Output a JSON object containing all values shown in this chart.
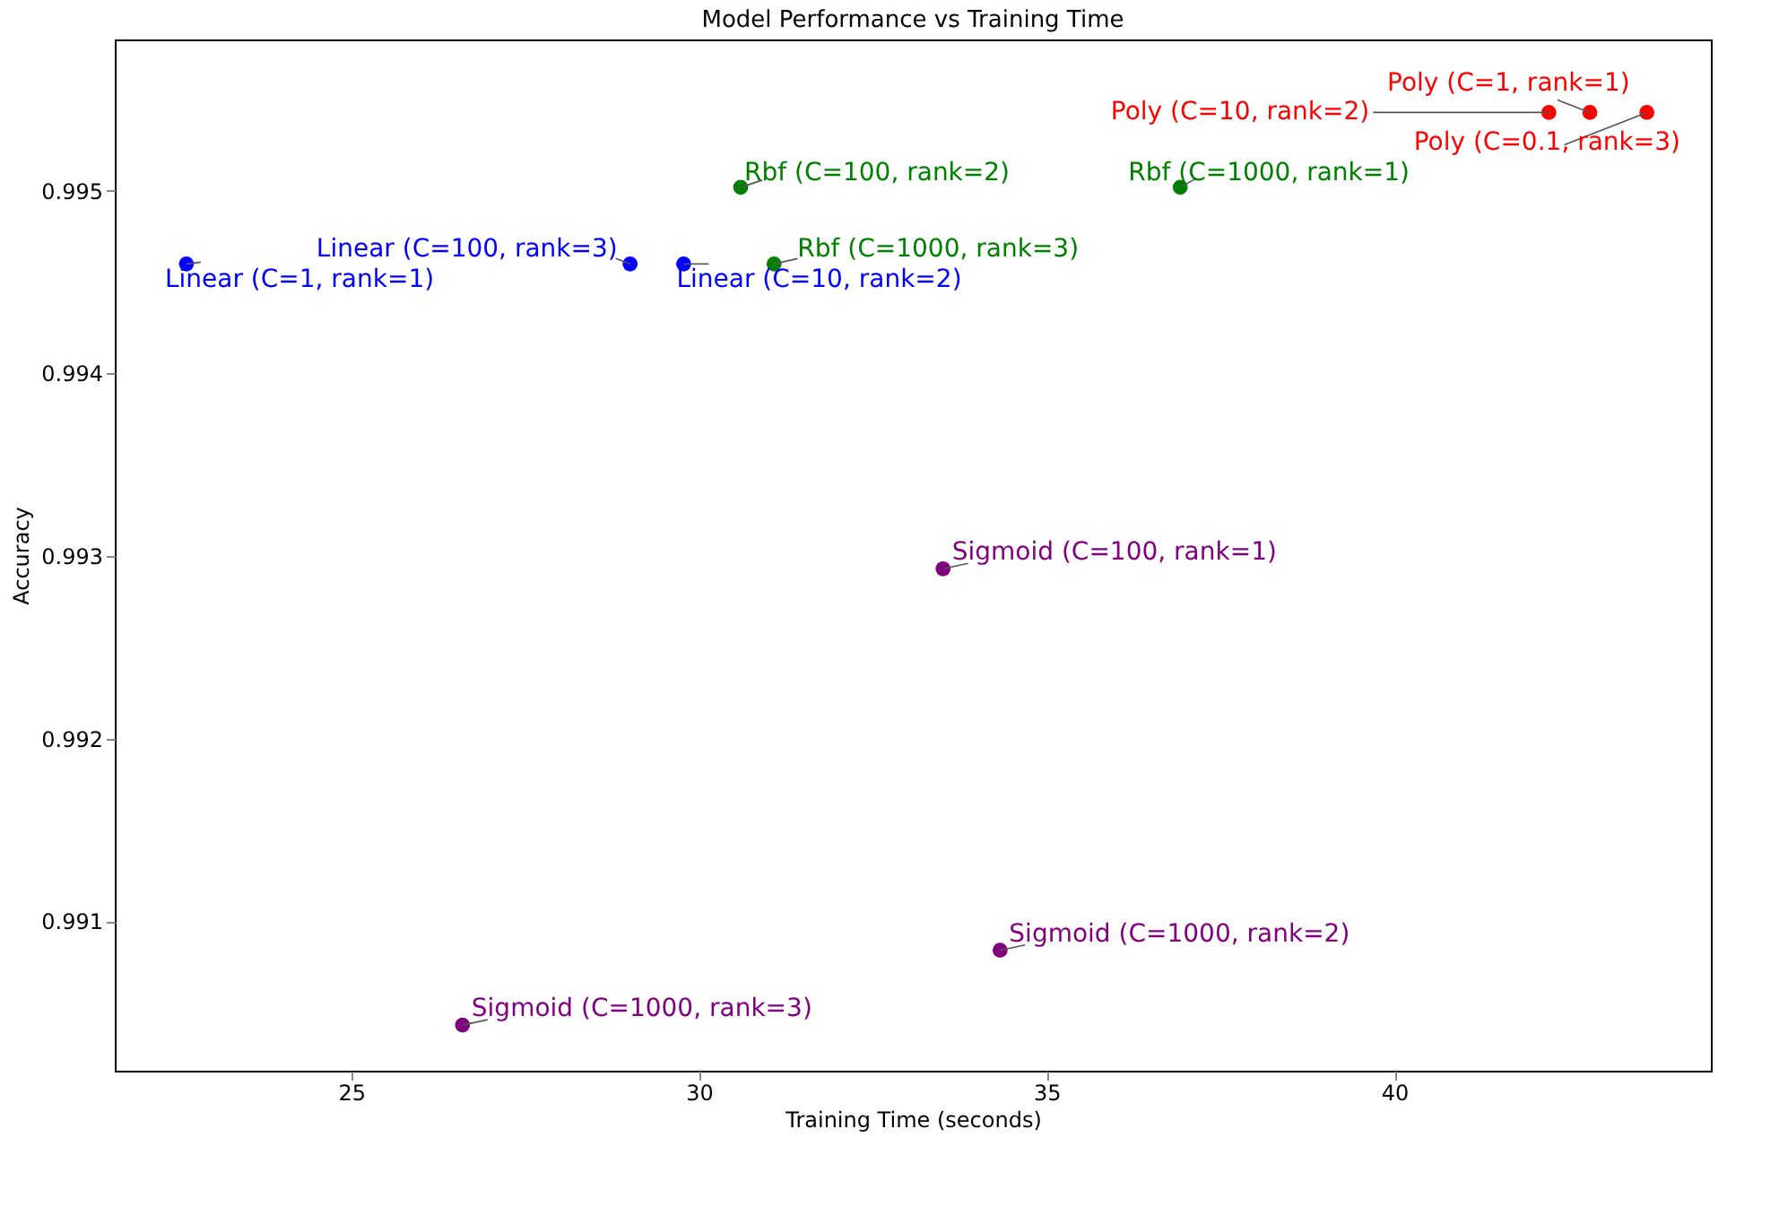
{
  "chart_data": {
    "type": "scatter",
    "title": "Model Performance vs Training Time",
    "xlabel": "Training Time (seconds)",
    "ylabel": "Accuracy",
    "xlim": [
      21.6,
      44.55
    ],
    "ylim": [
      0.99018,
      0.99583
    ],
    "xticks": [
      25,
      30,
      35,
      40
    ],
    "yticks": [
      0.991,
      0.992,
      0.993,
      0.994,
      0.995
    ],
    "grid": false,
    "legend": false,
    "marker": "circle",
    "series": [
      {
        "color": "#0000ff",
        "x": [
          22.63,
          29.01,
          29.78
        ],
        "values": [
          0.9946,
          0.9946,
          0.9946
        ]
      },
      {
        "color": "#008000",
        "x": [
          30.6,
          31.08,
          36.92
        ],
        "values": [
          0.99502,
          0.9946,
          0.99502
        ]
      },
      {
        "color": "#ff0000",
        "x": [
          42.22,
          42.81,
          43.63
        ],
        "values": [
          0.99543,
          0.99543,
          0.99543
        ]
      },
      {
        "color": "#800080",
        "x": [
          33.51,
          34.33,
          26.6
        ],
        "values": [
          0.99293,
          0.99084,
          0.99043
        ]
      }
    ],
    "annotations": [
      {
        "text": "Linear (C=1, rank=1)",
        "x": 22.63,
        "y": 0.9946
      },
      {
        "text": "Linear (C=100, rank=3)",
        "x": 29.01,
        "y": 0.9946
      },
      {
        "text": "Linear (C=10, rank=2)",
        "x": 29.78,
        "y": 0.9946
      },
      {
        "text": "Rbf (C=100, rank=2)",
        "x": 30.6,
        "y": 0.99502
      },
      {
        "text": "Rbf (C=1000, rank=3)",
        "x": 31.08,
        "y": 0.9946
      },
      {
        "text": "Rbf (C=1000, rank=1)",
        "x": 36.92,
        "y": 0.99502
      },
      {
        "text": "Poly (C=10, rank=2)",
        "x": 42.22,
        "y": 0.99543
      },
      {
        "text": "Poly (C=1, rank=1)",
        "x": 42.81,
        "y": 0.99543
      },
      {
        "text": "Poly (C=0.1, rank=3)",
        "x": 43.63,
        "y": 0.99543
      },
      {
        "text": "Sigmoid (C=100, rank=1)",
        "x": 33.51,
        "y": 0.99293
      },
      {
        "text": "Sigmoid (C=1000, rank=2)",
        "x": 34.33,
        "y": 0.99084
      },
      {
        "text": "Sigmoid (C=1000, rank=3)",
        "x": 26.6,
        "y": 0.99043
      }
    ]
  }
}
